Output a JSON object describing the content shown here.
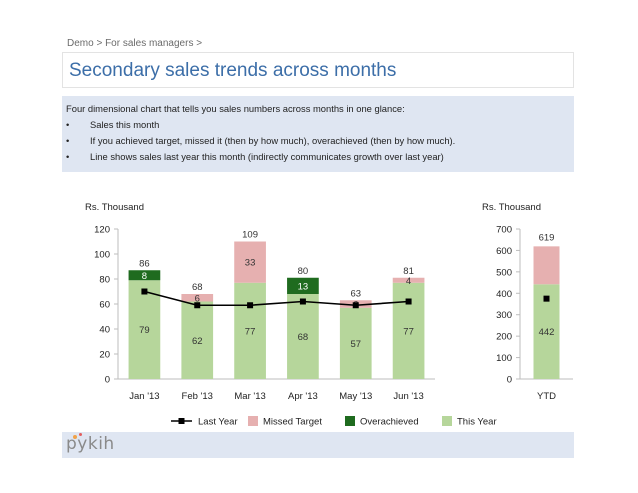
{
  "breadcrumb": "Demo > For sales managers >",
  "title": "Secondary sales trends across months",
  "description": {
    "intro": "Four dimensional chart that tells you sales numbers across months in one glance:",
    "bullet_char": "•",
    "bullets": [
      "Sales this month",
      "If you achieved target, missed it (then by how much), overachieved (then by how much).",
      "Line shows sales last year this month (indirectly communicates growth over last year)"
    ]
  },
  "colors": {
    "this_year": "#b6d69b",
    "missed_target": "#e6b0b0",
    "overachieved": "#1f6b1f",
    "last_year": "#000000",
    "title": "#3c6ea8"
  },
  "chart_data": [
    {
      "type": "bar",
      "ylabel": "Rs. Thousand",
      "ylim": [
        0,
        120
      ],
      "yticks": [
        "0",
        "20",
        "40",
        "60",
        "80",
        "100",
        "120"
      ],
      "categories": [
        "Jan '13",
        "Feb '13",
        "Mar '13",
        "Apr '13",
        "May '13",
        "Jun '13"
      ],
      "series": [
        {
          "name": "This Year",
          "values": [
            79,
            62,
            77,
            68,
            57,
            77
          ],
          "labels": [
            "79",
            "62",
            "77",
            "68",
            "57",
            "77"
          ]
        },
        {
          "name": "Missed Target",
          "values": [
            0,
            6,
            33,
            0,
            6,
            4
          ],
          "labels": [
            "",
            "6",
            "33",
            "",
            "6",
            "4"
          ]
        },
        {
          "name": "Overachieved",
          "values": [
            8,
            0,
            0,
            13,
            0,
            0
          ],
          "labels": [
            "8",
            "",
            "",
            "13",
            "",
            ""
          ]
        },
        {
          "name": "Last Year",
          "values": [
            70,
            59,
            59,
            62,
            59,
            62
          ]
        }
      ],
      "totals": [
        "86",
        "68",
        "109",
        "80",
        "63",
        "81"
      ]
    },
    {
      "type": "bar",
      "ylabel": "Rs. Thousand",
      "ylim": [
        0,
        700
      ],
      "yticks": [
        "0",
        "100",
        "200",
        "300",
        "400",
        "500",
        "600",
        "700"
      ],
      "categories": [
        "YTD"
      ],
      "series": [
        {
          "name": "This Year",
          "values": [
            442
          ],
          "labels": [
            "442"
          ]
        },
        {
          "name": "Missed Target",
          "values": [
            177
          ],
          "labels": [
            ""
          ]
        },
        {
          "name": "Last Year",
          "values": [
            375
          ]
        }
      ],
      "totals": [
        "619"
      ]
    }
  ],
  "legend": [
    "Last Year",
    "Missed Target",
    "Overachieved",
    "This Year"
  ],
  "footer": {
    "logo": "pykih"
  }
}
